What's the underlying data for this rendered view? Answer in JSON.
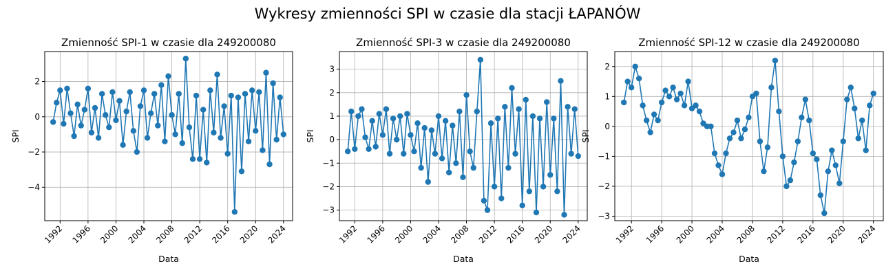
{
  "figure": {
    "suptitle": "Wykresy zmienności SPI w czasie dla stacji ŁAPANÓW",
    "line_color": "#1f77b4",
    "grid_color": "#b0b0b0"
  },
  "chart_data": [
    {
      "type": "line",
      "title": "Zmienność SPI-1 w czasie dla 249200080",
      "xlabel": "Data",
      "ylabel": "SPI",
      "xlim": [
        1989.8,
        2025.3
      ],
      "ylim": [
        -5.9,
        3.7
      ],
      "xticks": [
        1992,
        1996,
        2000,
        2004,
        2008,
        2012,
        2016,
        2020,
        2024
      ],
      "xtick_labels": [
        "1992",
        "1996",
        "2000",
        "2004",
        "2008",
        "2012",
        "2016",
        "2020",
        "2024"
      ],
      "yticks": [
        -4,
        -2,
        0,
        2
      ],
      "ytick_labels": [
        "−4",
        "−2",
        "0",
        "2"
      ],
      "grid": true,
      "marker": "o",
      "series": [
        {
          "x": [
            1991.0,
            1991.5,
            1992.0,
            1992.5,
            1993.0,
            1993.5,
            1994.0,
            1994.5,
            1995.0,
            1995.5,
            1996.0,
            1996.5,
            1997.0,
            1997.5,
            1998.0,
            1998.5,
            1999.0,
            1999.5,
            2000.0,
            2000.5,
            2001.0,
            2001.5,
            2002.0,
            2002.5,
            2003.0,
            2003.5,
            2004.0,
            2004.5,
            2005.0,
            2005.5,
            2006.0,
            2006.5,
            2007.0,
            2007.5,
            2008.0,
            2008.5,
            2009.0,
            2009.5,
            2010.0,
            2010.5,
            2011.0,
            2011.5,
            2012.0,
            2012.5,
            2013.0,
            2013.5,
            2014.0,
            2014.5,
            2015.0,
            2015.5,
            2016.0,
            2016.5,
            2017.0,
            2017.5,
            2018.0,
            2018.5,
            2019.0,
            2019.5,
            2020.0,
            2020.5,
            2021.0,
            2021.5,
            2022.0,
            2022.5,
            2023.0,
            2023.5,
            2024.0
          ],
          "y": [
            -0.3,
            0.8,
            1.5,
            -0.4,
            1.6,
            0.2,
            -1.1,
            0.7,
            -0.5,
            0.4,
            1.6,
            -0.9,
            0.5,
            -1.2,
            1.3,
            0.1,
            -0.6,
            1.4,
            -0.2,
            0.9,
            -1.6,
            0.3,
            1.4,
            -0.8,
            -2.0,
            0.6,
            1.5,
            -1.2,
            0.2,
            1.3,
            -0.5,
            1.8,
            -1.4,
            2.3,
            0.1,
            -1.0,
            1.3,
            -1.5,
            3.3,
            -0.6,
            -2.4,
            1.2,
            -2.4,
            0.4,
            -2.6,
            1.5,
            -0.9,
            2.4,
            -1.2,
            0.6,
            -2.1,
            1.2,
            -5.4,
            1.1,
            -3.1,
            1.3,
            -1.4,
            1.5,
            -0.8,
            1.4,
            -1.9,
            2.5,
            -2.7,
            1.9,
            -1.3,
            1.1,
            -1.0
          ]
        }
      ]
    },
    {
      "type": "line",
      "title": "Zmienność SPI-3 w czasie dla 249200080",
      "xlabel": "Data",
      "ylabel": "SPI",
      "xlim": [
        1989.8,
        2025.3
      ],
      "ylim": [
        -3.45,
        3.75
      ],
      "xticks": [
        1992,
        1996,
        2000,
        2004,
        2008,
        2012,
        2016,
        2020,
        2024
      ],
      "xtick_labels": [
        "1992",
        "1996",
        "2000",
        "2004",
        "2008",
        "2012",
        "2016",
        "2020",
        "2024"
      ],
      "yticks": [
        -3,
        -2,
        -1,
        0,
        1,
        2,
        3
      ],
      "ytick_labels": [
        "−3",
        "−2",
        "−1",
        "0",
        "1",
        "2",
        "3"
      ],
      "grid": true,
      "marker": "o",
      "series": [
        {
          "x": [
            1991.0,
            1991.5,
            1992.0,
            1992.5,
            1993.0,
            1993.5,
            1994.0,
            1994.5,
            1995.0,
            1995.5,
            1996.0,
            1996.5,
            1997.0,
            1997.5,
            1998.0,
            1998.5,
            1999.0,
            1999.5,
            2000.0,
            2000.5,
            2001.0,
            2001.5,
            2002.0,
            2002.5,
            2003.0,
            2003.5,
            2004.0,
            2004.5,
            2005.0,
            2005.5,
            2006.0,
            2006.5,
            2007.0,
            2007.5,
            2008.0,
            2008.5,
            2009.0,
            2009.5,
            2010.0,
            2010.5,
            2011.0,
            2011.5,
            2012.0,
            2012.5,
            2013.0,
            2013.5,
            2014.0,
            2014.5,
            2015.0,
            2015.5,
            2016.0,
            2016.5,
            2017.0,
            2017.5,
            2018.0,
            2018.5,
            2019.0,
            2019.5,
            2020.0,
            2020.5,
            2021.0,
            2021.5,
            2022.0,
            2022.5,
            2023.0,
            2023.5,
            2024.0
          ],
          "y": [
            -0.5,
            1.2,
            -0.4,
            1.0,
            1.3,
            0.1,
            -0.4,
            0.8,
            -0.3,
            1.1,
            0.2,
            1.3,
            -0.6,
            0.9,
            0.0,
            1.0,
            -0.6,
            1.1,
            0.2,
            -0.5,
            0.7,
            -1.2,
            0.5,
            -1.8,
            0.4,
            -0.6,
            1.0,
            -0.8,
            0.8,
            -1.4,
            0.6,
            -1.0,
            1.2,
            -1.6,
            1.9,
            -0.5,
            -1.2,
            1.2,
            3.4,
            -2.6,
            -3.0,
            0.7,
            -2.0,
            0.9,
            -2.5,
            1.4,
            -1.2,
            2.2,
            -0.6,
            1.3,
            -2.8,
            1.7,
            -2.2,
            1.0,
            -3.1,
            0.9,
            -2.0,
            1.6,
            -1.5,
            0.9,
            -2.2,
            2.5,
            -3.2,
            1.4,
            -0.6,
            1.3,
            -0.7
          ]
        }
      ]
    },
    {
      "type": "line",
      "title": "Zmienność SPI-12 w czasie dla 249200080",
      "xlabel": "Data",
      "ylabel": "SPI",
      "xlim": [
        1989.8,
        2025.3
      ],
      "ylim": [
        -3.15,
        2.5
      ],
      "xticks": [
        1992,
        1996,
        2000,
        2004,
        2008,
        2012,
        2016,
        2020,
        2024
      ],
      "xtick_labels": [
        "1992",
        "1996",
        "2000",
        "2004",
        "2008",
        "2012",
        "2016",
        "2020",
        "2024"
      ],
      "yticks": [
        -3,
        -2,
        -1,
        0,
        1,
        2
      ],
      "ytick_labels": [
        "−3",
        "−2",
        "−1",
        "0",
        "1",
        "2"
      ],
      "grid": true,
      "marker": "o",
      "series": [
        {
          "x": [
            1991.0,
            1991.5,
            1992.0,
            1992.5,
            1993.0,
            1993.5,
            1994.0,
            1994.5,
            1995.0,
            1995.5,
            1996.0,
            1996.5,
            1997.0,
            1997.5,
            1998.0,
            1998.5,
            1999.0,
            1999.5,
            2000.0,
            2000.5,
            2001.0,
            2001.5,
            2002.0,
            2002.5,
            2003.0,
            2003.5,
            2004.0,
            2004.5,
            2005.0,
            2005.5,
            2006.0,
            2006.5,
            2007.0,
            2007.5,
            2008.0,
            2008.5,
            2009.0,
            2009.5,
            2010.0,
            2010.5,
            2011.0,
            2011.5,
            2012.0,
            2012.5,
            2013.0,
            2013.5,
            2014.0,
            2014.5,
            2015.0,
            2015.5,
            2016.0,
            2016.5,
            2017.0,
            2017.5,
            2018.0,
            2018.5,
            2019.0,
            2019.5,
            2020.0,
            2020.5,
            2021.0,
            2021.5,
            2022.0,
            2022.5,
            2023.0,
            2023.5,
            2024.0
          ],
          "y": [
            0.8,
            1.5,
            1.3,
            2.0,
            1.6,
            0.7,
            0.2,
            -0.2,
            0.4,
            0.2,
            0.8,
            1.2,
            1.0,
            1.3,
            0.9,
            1.1,
            0.7,
            1.5,
            0.6,
            0.7,
            0.5,
            0.1,
            0.0,
            0.0,
            -0.9,
            -1.3,
            -1.6,
            -0.9,
            -0.4,
            -0.2,
            0.2,
            -0.4,
            -0.1,
            0.3,
            1.0,
            1.1,
            -0.5,
            -1.5,
            -0.7,
            1.3,
            2.2,
            0.5,
            -1.0,
            -2.0,
            -1.8,
            -1.2,
            -0.5,
            0.3,
            0.9,
            0.2,
            -0.9,
            -1.1,
            -2.3,
            -2.9,
            -1.5,
            -0.8,
            -1.3,
            -1.9,
            -0.5,
            0.9,
            1.3,
            0.6,
            -0.4,
            0.2,
            -0.8,
            0.7,
            1.1
          ]
        }
      ]
    }
  ]
}
